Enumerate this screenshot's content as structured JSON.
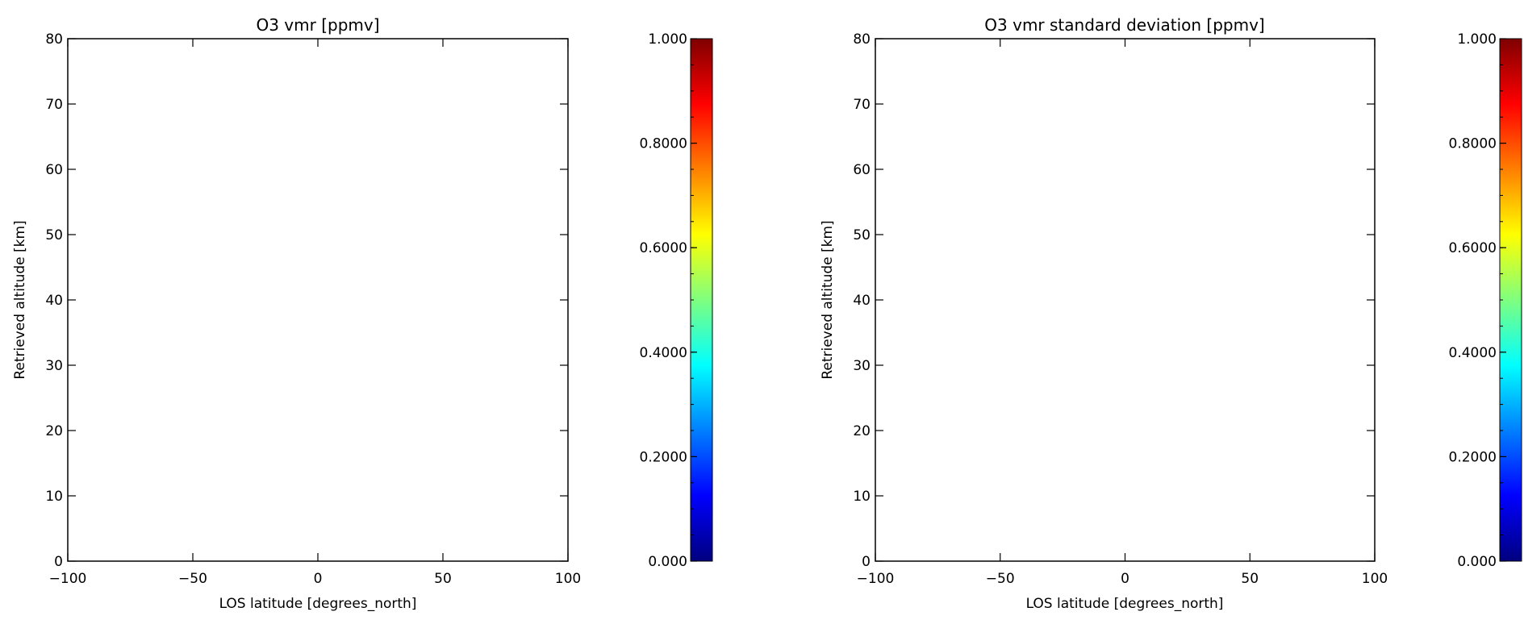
{
  "panels": [
    {
      "title": "O3 vmr [ppmv]",
      "chart_data": {
        "type": "heatmap",
        "title": "O3 vmr [ppmv]",
        "xlabel": "LOS latitude [degrees_north]",
        "ylabel": "Retrieved altitude [km]",
        "xlim": [
          -100,
          100
        ],
        "ylim": [
          0,
          80
        ],
        "x_ticks": [
          "−100",
          "−50",
          "0",
          "50",
          "100"
        ],
        "x_tick_values": [
          -100,
          -50,
          0,
          50,
          100
        ],
        "y_ticks": [
          "0",
          "10",
          "20",
          "30",
          "40",
          "50",
          "60",
          "70",
          "80"
        ],
        "y_tick_values": [
          0,
          10,
          20,
          30,
          40,
          50,
          60,
          70,
          80
        ],
        "values": [],
        "grid": false,
        "colorbar": {
          "range": [
            0,
            1
          ],
          "tick_labels": [
            "0.000",
            "0.2000",
            "0.4000",
            "0.6000",
            "0.8000",
            "1.000"
          ],
          "tick_values": [
            0,
            0.2,
            0.4,
            0.6,
            0.8,
            1.0
          ],
          "colormap": "jet"
        }
      }
    },
    {
      "title": "O3 vmr standard deviation [ppmv]",
      "chart_data": {
        "type": "heatmap",
        "title": "O3 vmr standard deviation [ppmv]",
        "xlabel": "LOS latitude [degrees_north]",
        "ylabel": "Retrieved altitude [km]",
        "xlim": [
          -100,
          100
        ],
        "ylim": [
          0,
          80
        ],
        "x_ticks": [
          "−100",
          "−50",
          "0",
          "50",
          "100"
        ],
        "x_tick_values": [
          -100,
          -50,
          0,
          50,
          100
        ],
        "y_ticks": [
          "0",
          "10",
          "20",
          "30",
          "40",
          "50",
          "60",
          "70",
          "80"
        ],
        "y_tick_values": [
          0,
          10,
          20,
          30,
          40,
          50,
          60,
          70,
          80
        ],
        "values": [],
        "grid": false,
        "colorbar": {
          "range": [
            0,
            1
          ],
          "tick_labels": [
            "0.000",
            "0.2000",
            "0.4000",
            "0.6000",
            "0.8000",
            "1.000"
          ],
          "tick_values": [
            0,
            0.2,
            0.4,
            0.6,
            0.8,
            1.0
          ],
          "colormap": "jet"
        }
      }
    }
  ],
  "colormap_stops": [
    "#00007f",
    "#0000ff",
    "#007fff",
    "#00ffff",
    "#7fff7f",
    "#ffff00",
    "#ff7f00",
    "#ff0000",
    "#7f0000"
  ]
}
